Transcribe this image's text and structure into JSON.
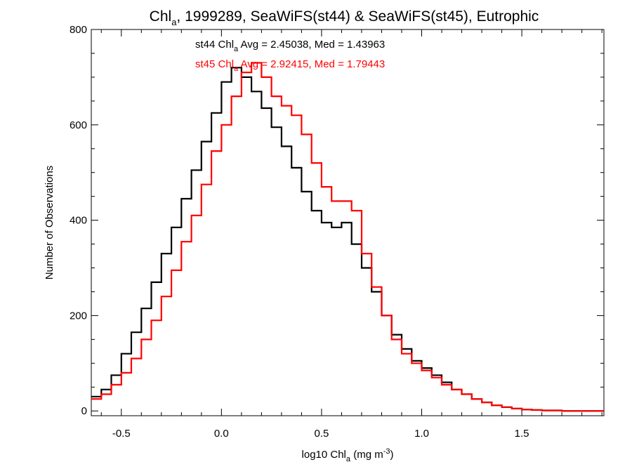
{
  "chart_data": {
    "type": "line",
    "title": {
      "main": "Chl",
      "sub": "a",
      "rest": ", 1999289, SeaWiFS(st44) & SeaWiFS(st45), Eutrophic"
    },
    "xlabel": {
      "pre": "log10 Chl",
      "sub": "a",
      "mid": " (mg m",
      "sup": "-3",
      "post": ")"
    },
    "ylabel": "Number of Observations",
    "xlim": [
      -0.65,
      1.91
    ],
    "ylim": [
      -10,
      800
    ],
    "xticks": [
      {
        "value": -0.5,
        "label": "-0.5"
      },
      {
        "value": 0.0,
        "label": "0.0"
      },
      {
        "value": 0.5,
        "label": "0.5"
      },
      {
        "value": 1.0,
        "label": "1.0"
      },
      {
        "value": 1.5,
        "label": "1.5"
      }
    ],
    "yticks": [
      {
        "value": 0,
        "label": "0"
      },
      {
        "value": 200,
        "label": "200"
      },
      {
        "value": 400,
        "label": "400"
      },
      {
        "value": 600,
        "label": "600"
      },
      {
        "value": 800,
        "label": "800"
      }
    ],
    "grid": false,
    "series": [
      {
        "name": "st44",
        "color": "#000000",
        "step": "histogram",
        "x": [
          -0.65,
          -0.6,
          -0.55,
          -0.5,
          -0.45,
          -0.4,
          -0.35,
          -0.3,
          -0.25,
          -0.2,
          -0.15,
          -0.1,
          -0.05,
          0.0,
          0.05,
          0.1,
          0.15,
          0.2,
          0.25,
          0.3,
          0.35,
          0.4,
          0.45,
          0.5,
          0.55,
          0.6,
          0.65,
          0.7,
          0.75,
          0.8,
          0.85,
          0.9,
          0.95,
          1.0,
          1.05,
          1.1,
          1.15,
          1.2,
          1.25,
          1.3,
          1.35,
          1.4,
          1.45,
          1.5,
          1.55,
          1.6,
          1.65,
          1.7,
          1.75,
          1.8,
          1.85,
          1.9
        ],
        "y": [
          30,
          45,
          75,
          120,
          165,
          215,
          270,
          330,
          385,
          445,
          505,
          565,
          625,
          690,
          720,
          700,
          670,
          635,
          595,
          555,
          510,
          460,
          420,
          395,
          385,
          395,
          350,
          300,
          250,
          200,
          160,
          130,
          105,
          90,
          75,
          60,
          45,
          35,
          25,
          18,
          12,
          8,
          5,
          3,
          2,
          1,
          1,
          0,
          0,
          0,
          0,
          0
        ]
      },
      {
        "name": "st45",
        "color": "#ff0000",
        "step": "histogram",
        "x": [
          -0.65,
          -0.6,
          -0.55,
          -0.5,
          -0.45,
          -0.4,
          -0.35,
          -0.3,
          -0.25,
          -0.2,
          -0.15,
          -0.1,
          -0.05,
          0.0,
          0.05,
          0.1,
          0.15,
          0.2,
          0.25,
          0.3,
          0.35,
          0.4,
          0.45,
          0.5,
          0.55,
          0.6,
          0.65,
          0.7,
          0.75,
          0.8,
          0.85,
          0.9,
          0.95,
          1.0,
          1.05,
          1.1,
          1.15,
          1.2,
          1.25,
          1.3,
          1.35,
          1.4,
          1.45,
          1.5,
          1.55,
          1.6,
          1.65,
          1.7,
          1.75,
          1.8,
          1.85,
          1.9
        ],
        "y": [
          25,
          35,
          55,
          80,
          110,
          150,
          190,
          240,
          295,
          355,
          410,
          475,
          545,
          600,
          660,
          710,
          730,
          700,
          660,
          640,
          620,
          580,
          520,
          470,
          440,
          440,
          420,
          330,
          260,
          200,
          150,
          120,
          100,
          85,
          70,
          55,
          45,
          35,
          25,
          18,
          12,
          8,
          5,
          3,
          2,
          1,
          1,
          0,
          0,
          0,
          0,
          0
        ]
      }
    ],
    "annotations": [
      {
        "series": "st44",
        "color": "#000000",
        "pre": "st44 Chl",
        "sub": "a",
        "post": " Avg = 2.45038, Med = 1.43963"
      },
      {
        "series": "st45",
        "color": "#ff0000",
        "pre": "st45 Chl",
        "sub": "a",
        "post": " Avg = 2.92415, Med = 1.79443"
      }
    ]
  }
}
